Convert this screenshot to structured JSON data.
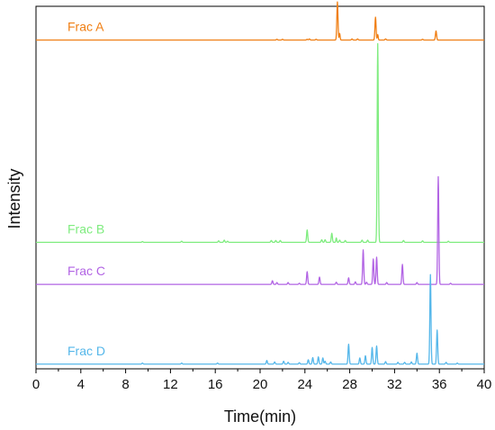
{
  "chart_data": {
    "type": "line",
    "xlabel": "Time(min)",
    "ylabel": "Intensity",
    "xlim": [
      0,
      40
    ],
    "x_ticks": [
      "0",
      "4",
      "8",
      "12",
      "16",
      "20",
      "24",
      "28",
      "32",
      "36",
      "40"
    ],
    "y_tick_labels": false,
    "grid": false,
    "legend": "inline labels at left of each trace",
    "series": [
      {
        "name": "Frac A",
        "color": "#f07f14",
        "baseline": 0.907,
        "noise": [
          [
            21.5,
            0.002
          ],
          [
            22.0,
            0.002
          ],
          [
            24.2,
            0.002
          ],
          [
            24.4,
            0.003
          ],
          [
            25.0,
            0.002
          ],
          [
            28.2,
            0.003
          ],
          [
            28.7,
            0.003
          ],
          [
            31.2,
            0.003
          ],
          [
            34.5,
            0.002
          ]
        ],
        "peaks": [
          [
            26.9,
            0.105,
            0.05
          ],
          [
            27.1,
            0.018,
            0.04
          ],
          [
            30.3,
            0.063,
            0.05
          ],
          [
            30.5,
            0.015,
            0.04
          ],
          [
            35.7,
            0.025,
            0.05
          ]
        ]
      },
      {
        "name": "Frac B",
        "color": "#7fec7f",
        "baseline": 0.349,
        "noise": [
          [
            9.5,
            0.002
          ],
          [
            13.0,
            0.003
          ],
          [
            16.3,
            0.004
          ],
          [
            16.8,
            0.006
          ],
          [
            17.1,
            0.003
          ],
          [
            21.0,
            0.005
          ],
          [
            21.4,
            0.005
          ],
          [
            21.8,
            0.005
          ],
          [
            25.5,
            0.007
          ],
          [
            25.8,
            0.007
          ],
          [
            27.1,
            0.006
          ],
          [
            27.6,
            0.005
          ],
          [
            29.1,
            0.006
          ],
          [
            29.6,
            0.006
          ],
          [
            32.8,
            0.005
          ],
          [
            34.5,
            0.004
          ],
          [
            36.8,
            0.003
          ]
        ],
        "peaks": [
          [
            24.2,
            0.034,
            0.05
          ],
          [
            26.4,
            0.025,
            0.05
          ],
          [
            26.8,
            0.012,
            0.04
          ],
          [
            30.5,
            0.548,
            0.05
          ]
        ]
      },
      {
        "name": "Frac C",
        "color": "#b264e4",
        "baseline": 0.233,
        "noise": [
          [
            21.5,
            0.005
          ],
          [
            22.5,
            0.005
          ],
          [
            23.5,
            0.003
          ],
          [
            26.8,
            0.006
          ],
          [
            28.5,
            0.007
          ],
          [
            29.5,
            0.006
          ],
          [
            31.3,
            0.005
          ],
          [
            34.0,
            0.005
          ],
          [
            37.0,
            0.003
          ]
        ],
        "peaks": [
          [
            21.1,
            0.01,
            0.05
          ],
          [
            24.2,
            0.035,
            0.05
          ],
          [
            25.3,
            0.02,
            0.05
          ],
          [
            27.9,
            0.018,
            0.05
          ],
          [
            29.2,
            0.095,
            0.05
          ],
          [
            30.1,
            0.07,
            0.05
          ],
          [
            30.4,
            0.075,
            0.05
          ],
          [
            32.7,
            0.055,
            0.05
          ],
          [
            35.9,
            0.297,
            0.05
          ]
        ]
      },
      {
        "name": "Frac D",
        "color": "#55b7ea",
        "baseline": 0.013,
        "noise": [
          [
            9.5,
            0.003
          ],
          [
            13.0,
            0.003
          ],
          [
            16.2,
            0.003
          ],
          [
            21.3,
            0.006
          ],
          [
            22.5,
            0.005
          ],
          [
            23.5,
            0.004
          ],
          [
            25.8,
            0.008
          ],
          [
            26.3,
            0.006
          ],
          [
            31.2,
            0.007
          ],
          [
            32.3,
            0.005
          ],
          [
            32.9,
            0.005
          ],
          [
            33.5,
            0.006
          ],
          [
            36.6,
            0.005
          ],
          [
            37.6,
            0.003
          ]
        ],
        "peaks": [
          [
            20.6,
            0.01,
            0.05
          ],
          [
            22.1,
            0.008,
            0.05
          ],
          [
            24.3,
            0.012,
            0.05
          ],
          [
            24.7,
            0.018,
            0.05
          ],
          [
            25.2,
            0.02,
            0.05
          ],
          [
            25.6,
            0.017,
            0.05
          ],
          [
            27.9,
            0.055,
            0.05
          ],
          [
            28.9,
            0.017,
            0.05
          ],
          [
            29.4,
            0.023,
            0.05
          ],
          [
            30.0,
            0.046,
            0.05
          ],
          [
            30.4,
            0.05,
            0.05
          ],
          [
            34.0,
            0.03,
            0.05
          ],
          [
            35.2,
            0.247,
            0.05
          ],
          [
            35.8,
            0.094,
            0.05
          ]
        ]
      }
    ]
  }
}
